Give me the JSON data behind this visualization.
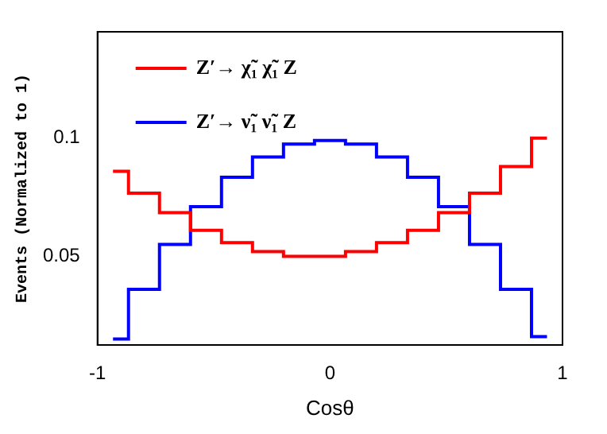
{
  "chart_data": {
    "type": "step",
    "xlabel": "Cosθ",
    "ylabel": "Events (Normalized to 1)",
    "x": [
      -0.9333,
      -0.8,
      -0.6667,
      -0.5333,
      -0.4,
      -0.2667,
      -0.1333,
      0,
      0.1333,
      0.2667,
      0.4,
      0.5333,
      0.6667,
      0.8,
      0.9333
    ],
    "series": [
      {
        "name": "Z′→ χ̃₁ χ̃₁ Z",
        "color": "#ff0000",
        "values": [
          0.086,
          0.0767,
          0.0685,
          0.061,
          0.0558,
          0.052,
          0.05,
          0.05,
          0.052,
          0.0558,
          0.061,
          0.0685,
          0.0767,
          0.088,
          0.1
        ]
      },
      {
        "name": "Z′→ ν̃₁ ν̃₁ Z",
        "color": "#0000ff",
        "values": [
          0.015,
          0.036,
          0.055,
          0.071,
          0.0835,
          0.092,
          0.0975,
          0.099,
          0.0975,
          0.092,
          0.0835,
          0.071,
          0.055,
          0.036,
          0.016
        ]
      }
    ],
    "xlim": [
      -1,
      1
    ],
    "xticks": [
      -1,
      0,
      1
    ],
    "ylim": [
      0.0125,
      0.145
    ],
    "yticks": [
      0.05,
      0.1
    ],
    "grid": false,
    "legend": "top left"
  }
}
